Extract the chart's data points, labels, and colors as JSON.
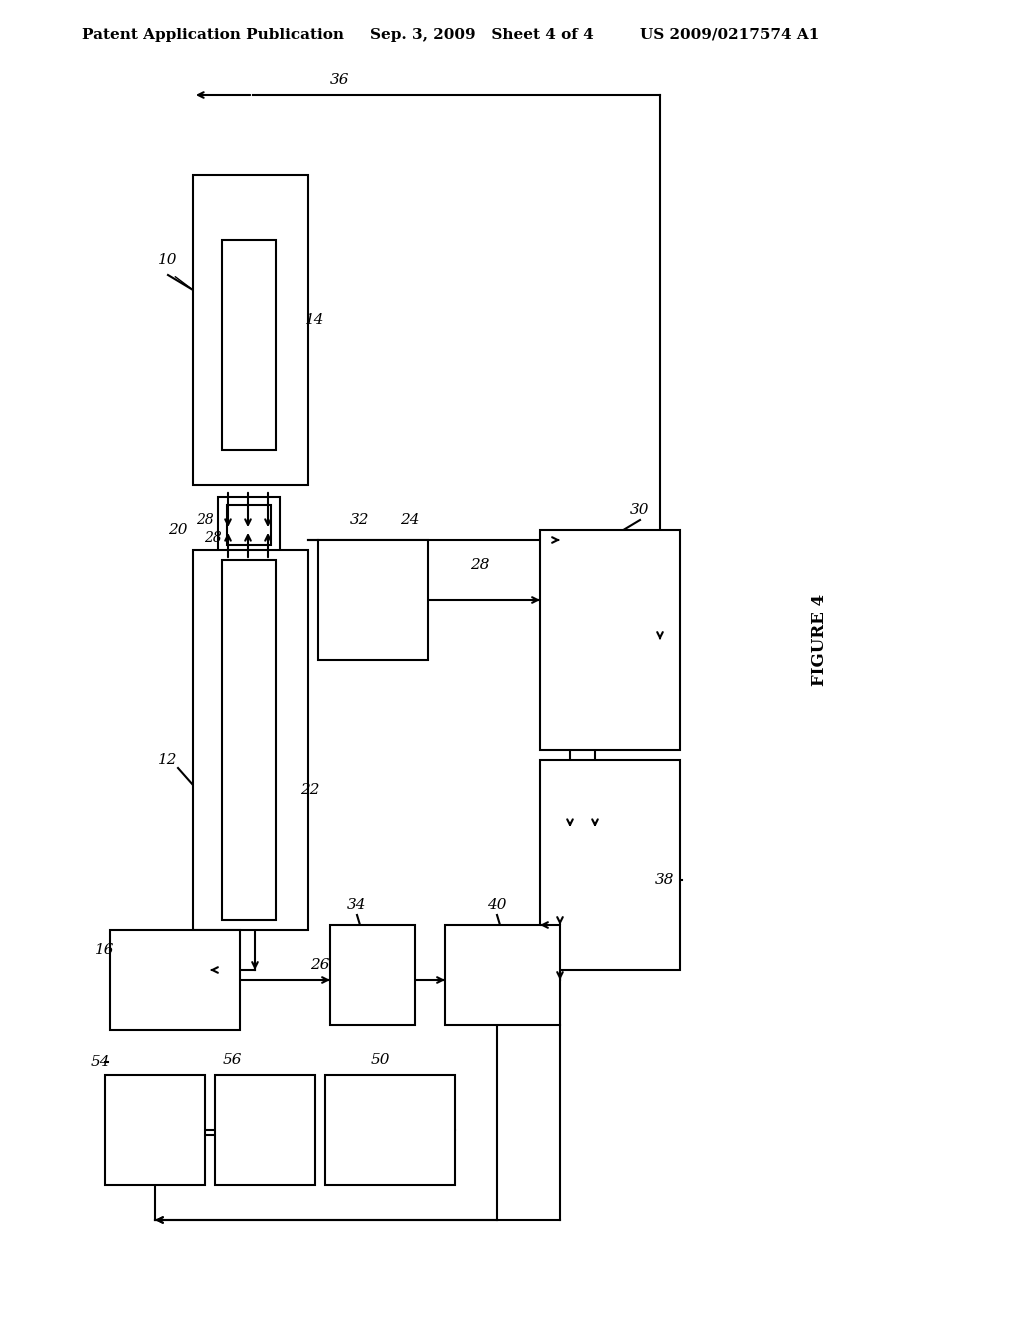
{
  "background_color": "#ffffff",
  "header_left": "Patent Application Publication",
  "header_mid": "Sep. 3, 2009   Sheet 4 of 4",
  "header_right": "US 2009/0217574 A1",
  "figure_label": "FIGURE 4",
  "line_color": "#000000",
  "line_width": 1.5
}
